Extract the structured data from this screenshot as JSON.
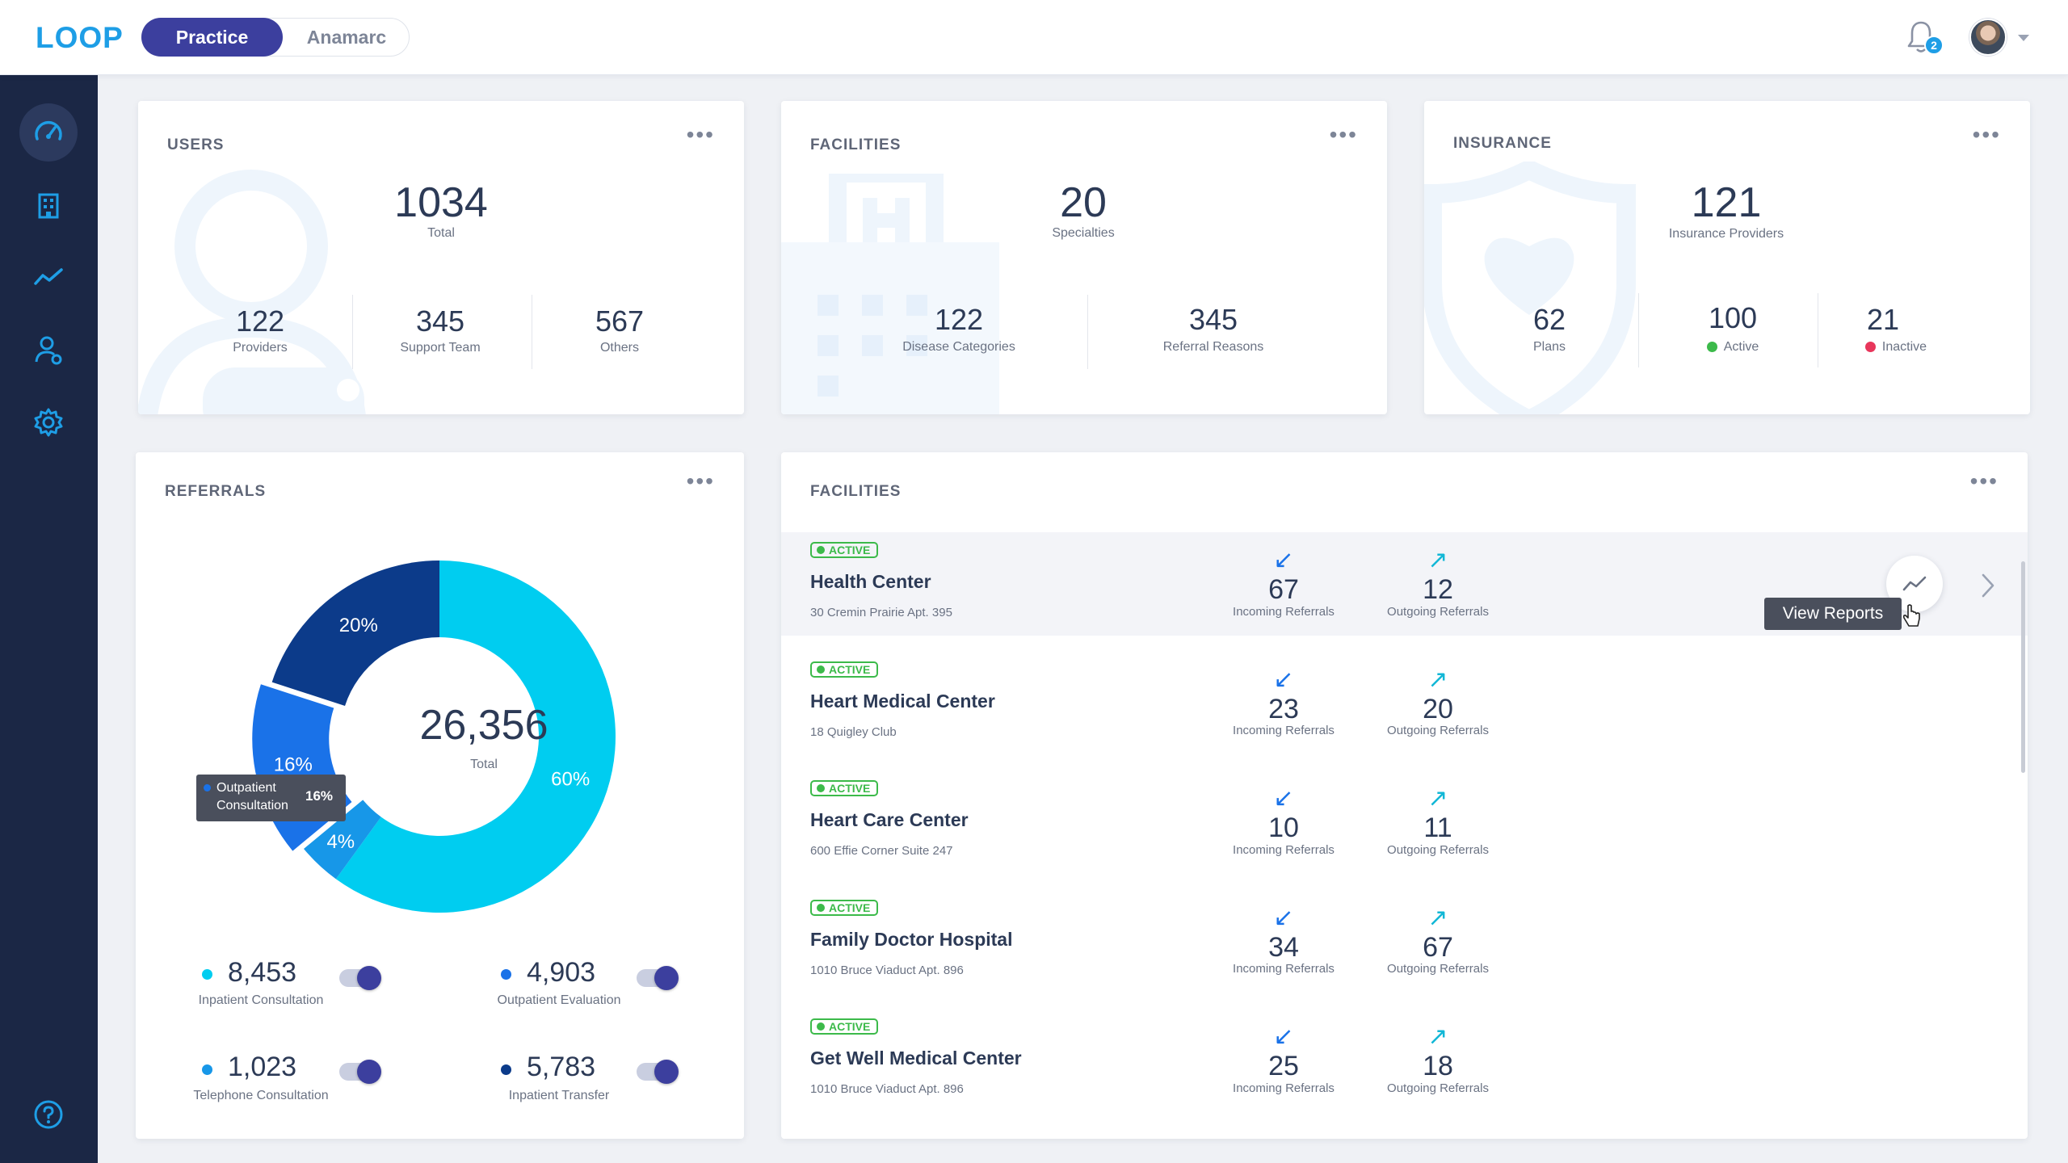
{
  "header": {
    "logo": "LOOP",
    "tabs": [
      {
        "label": "Practice"
      },
      {
        "label": "Anamarc"
      }
    ],
    "notifications": "2"
  },
  "sidebar": {
    "icons": [
      "dashboard-gauge-icon",
      "building-icon",
      "trend-line-icon",
      "user-network-icon",
      "gear-icon",
      "help-icon"
    ]
  },
  "users": {
    "title": "USERS",
    "total": "1034",
    "total_label": "Total",
    "stats": [
      {
        "value": "122",
        "label": "Providers"
      },
      {
        "value": "345",
        "label": "Support Team"
      },
      {
        "value": "567",
        "label": "Others"
      }
    ]
  },
  "facilities_summary": {
    "title": "FACILITIES",
    "total": "20",
    "total_label": "Specialties",
    "stats": [
      {
        "value": "122",
        "label": "Disease Categories"
      },
      {
        "value": "345",
        "label": "Referral Reasons"
      }
    ]
  },
  "insurance": {
    "title": "INSURANCE",
    "total": "121",
    "total_label": "Insurance Providers",
    "stats": [
      {
        "value": "62",
        "label": "Plans"
      },
      {
        "value": "100",
        "label": "Active"
      },
      {
        "value": "21",
        "label": "Inactive"
      }
    ],
    "colors": {
      "active": "#3cba4a",
      "inactive": "#e8365b"
    }
  },
  "referrals": {
    "title": "REFERRALS",
    "total": "26,356",
    "total_label": "Total",
    "tooltip": {
      "label_line1": "Outpatient",
      "label_line2": "Consultation",
      "value": "16%"
    },
    "legend": [
      {
        "value": "8,453",
        "label": "Inpatient Consultation",
        "color": "#00cdf0"
      },
      {
        "value": "4,903",
        "label": "Outpatient Evaluation",
        "color": "#1a72e8"
      },
      {
        "value": "1,023",
        "label": "Telephone Consultation",
        "color": "#1797e8"
      },
      {
        "value": "5,783",
        "label": "Inpatient Transfer",
        "color": "#0c3b8a"
      }
    ]
  },
  "chart_data": {
    "type": "pie",
    "categories": [
      "Inpatient Consultation",
      "Telephone Consultation",
      "Outpatient Consultation",
      "Inpatient Transfer"
    ],
    "values": [
      60,
      4,
      16,
      20
    ],
    "labels": [
      "60%",
      "4%",
      "16%",
      "20%"
    ],
    "colors": [
      "#00cdf0",
      "#1797e8",
      "#1a72e8",
      "#0c3b8a"
    ],
    "center_value": "26,356",
    "center_label": "Total"
  },
  "facilities_list": {
    "title": "FACILITIES",
    "badge": "ACTIVE",
    "incoming_label": "Incoming Referrals",
    "outgoing_label": "Outgoing Referrals",
    "view_reports": "View Reports",
    "items": [
      {
        "name": "Health Center",
        "address": "30 Cremin Prairie Apt. 395",
        "incoming": "67",
        "outgoing": "12"
      },
      {
        "name": "Heart Medical Center",
        "address": "18 Quigley Club",
        "incoming": "23",
        "outgoing": "20"
      },
      {
        "name": "Heart Care Center",
        "address": "600 Effie Corner Suite 247",
        "incoming": "10",
        "outgoing": "11"
      },
      {
        "name": "Family Doctor Hospital",
        "address": "1010 Bruce Viaduct Apt. 896",
        "incoming": "34",
        "outgoing": "67"
      },
      {
        "name": "Get Well Medical Center",
        "address": "1010 Bruce Viaduct Apt. 896",
        "incoming": "25",
        "outgoing": "18"
      }
    ]
  }
}
